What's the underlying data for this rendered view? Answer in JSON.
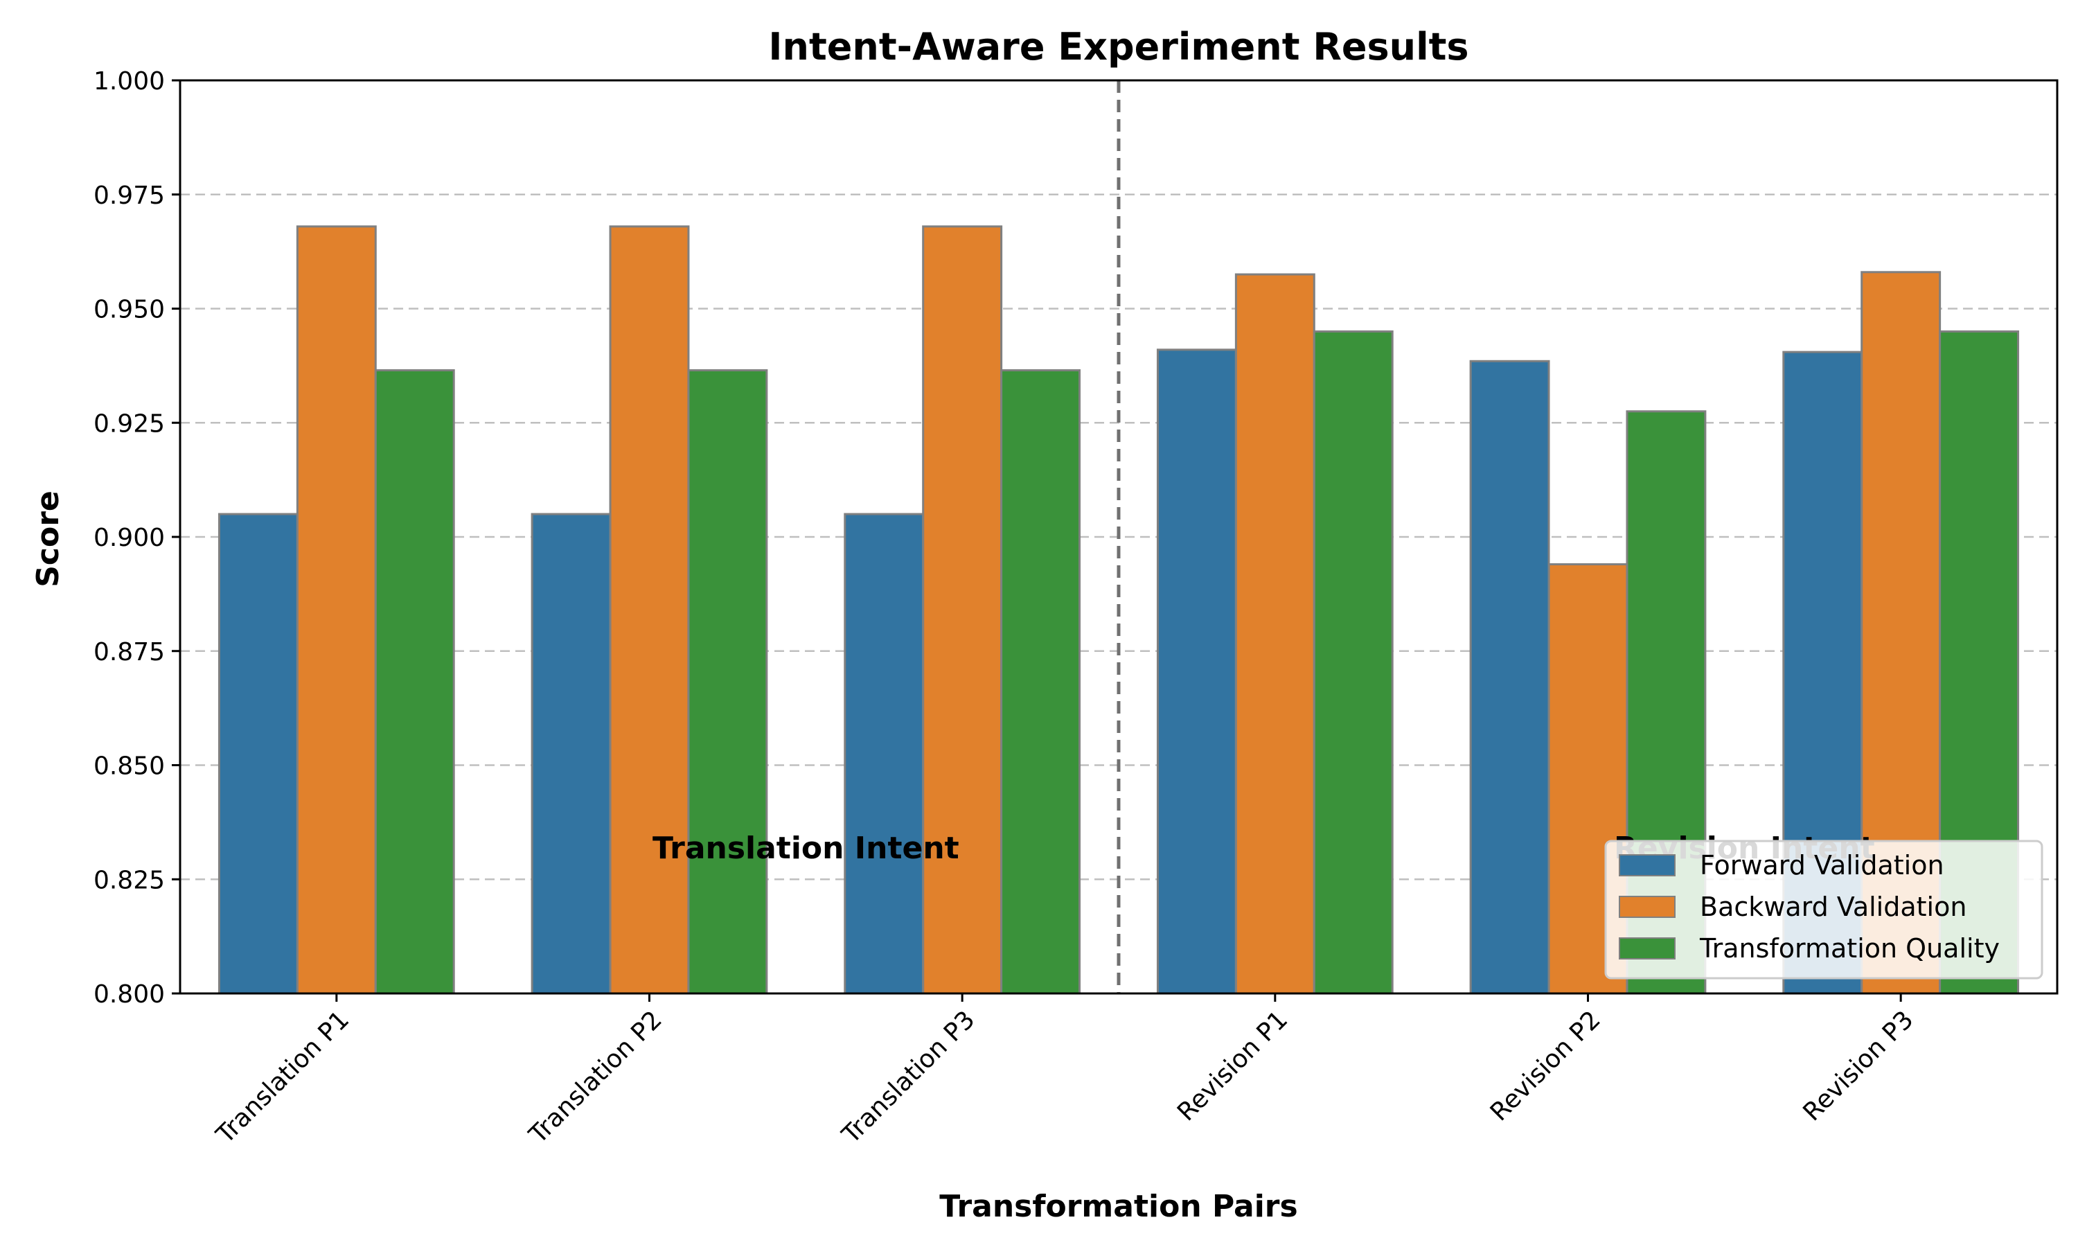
{
  "chart_data": {
    "type": "bar",
    "title": "Intent-Aware Experiment Results",
    "xlabel": "Transformation Pairs",
    "ylabel": "Score",
    "ylim": [
      0.8,
      1.0
    ],
    "yticks": [
      "0.800",
      "0.825",
      "0.850",
      "0.875",
      "0.900",
      "0.925",
      "0.950",
      "0.975",
      "1.000"
    ],
    "categories": [
      "Translation P1",
      "Translation P2",
      "Translation P3",
      "Revision P1",
      "Revision P2",
      "Revision P3"
    ],
    "series": [
      {
        "name": "Forward Validation",
        "color": "#3274a1",
        "values": [
          0.905,
          0.905,
          0.905,
          0.941,
          0.9385,
          0.9405
        ]
      },
      {
        "name": "Backward Validation",
        "color": "#e1812c",
        "values": [
          0.968,
          0.968,
          0.968,
          0.9575,
          0.894,
          0.958
        ]
      },
      {
        "name": "Transformation Quality",
        "color": "#3a923a",
        "values": [
          0.9365,
          0.9365,
          0.9365,
          0.945,
          0.9275,
          0.945
        ]
      }
    ],
    "annotations": [
      {
        "text": "Translation Intent",
        "x_after_category": 1,
        "y": 0.832
      },
      {
        "text": "Revision Intent",
        "x_after_category": 4,
        "y": 0.832
      }
    ],
    "separator_after_category": 2,
    "grid": "y-dashed",
    "legend_position": "lower-right"
  }
}
